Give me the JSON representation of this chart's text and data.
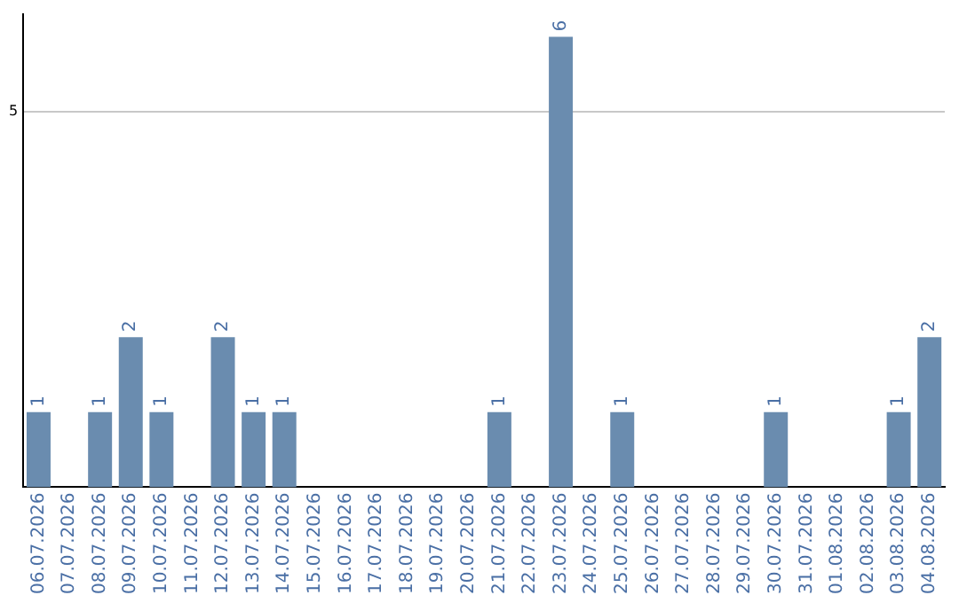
{
  "chart_data": {
    "type": "bar",
    "categories": [
      "06.07.2026",
      "07.07.2026",
      "08.07.2026",
      "09.07.2026",
      "10.07.2026",
      "11.07.2026",
      "12.07.2026",
      "13.07.2026",
      "14.07.2026",
      "15.07.2026",
      "16.07.2026",
      "17.07.2026",
      "18.07.2026",
      "19.07.2026",
      "20.07.2026",
      "21.07.2026",
      "22.07.2026",
      "23.07.2026",
      "24.07.2026",
      "25.07.2026",
      "26.07.2026",
      "27.07.2026",
      "28.07.2026",
      "29.07.2026",
      "30.07.2026",
      "31.07.2026",
      "01.08.2026",
      "02.08.2026",
      "03.08.2026",
      "04.08.2026"
    ],
    "values": [
      1,
      0,
      1,
      2,
      1,
      0,
      2,
      1,
      1,
      0,
      0,
      0,
      0,
      0,
      0,
      1,
      0,
      6,
      0,
      1,
      0,
      0,
      0,
      0,
      1,
      0,
      0,
      0,
      1,
      2
    ],
    "value_labels": [
      "1",
      null,
      "1",
      "2",
      "1",
      null,
      "2",
      "1",
      "1",
      null,
      null,
      null,
      null,
      null,
      null,
      "1",
      null,
      "6",
      null,
      "1",
      null,
      null,
      null,
      null,
      "1",
      null,
      null,
      null,
      "1",
      "2"
    ],
    "color": "#6a8caf",
    "ylim": [
      0,
      6.3
    ],
    "yticks": [
      5
    ],
    "grid": "y",
    "legend": false
  }
}
